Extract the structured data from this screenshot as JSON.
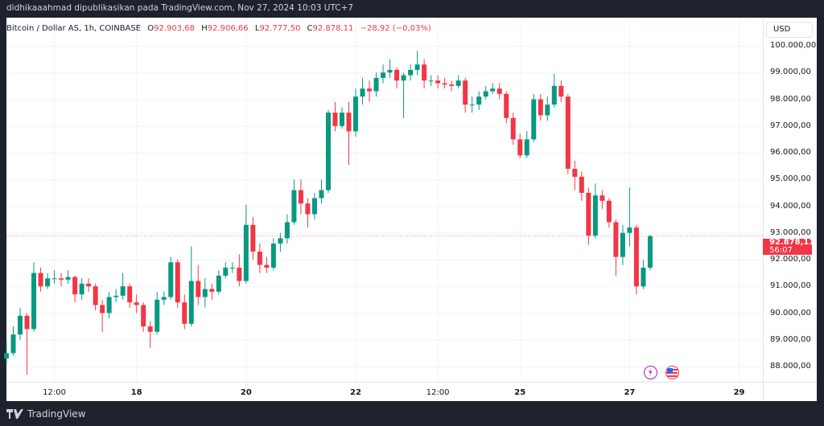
{
  "publisher_line": "didhikaaahmad dipublikasikan pada TradingView.com, Nov 27, 2024 10:03 UTC+7",
  "legend": {
    "symbol": "Bitcoin / Dollar AS, 1h, COINBASE",
    "open_label": "O",
    "open": "92.903,68",
    "high_label": "H",
    "high": "92.906,66",
    "low_label": "L",
    "low": "92.777,50",
    "close_label": "C",
    "close": "92.878,11",
    "change": "−28,92 (−0,03%)"
  },
  "currency_button": "USD",
  "last_price_label": {
    "price": "92.878,11",
    "countdown": "56:07"
  },
  "colors": {
    "up": "#089981",
    "down": "#f23645",
    "frame": "#1e222d",
    "event_icon": "#9c27b0"
  },
  "icons": [
    "lightning-event-icon",
    "us-flag-event-icon"
  ],
  "footer_logo": "TradingView",
  "chart_data": {
    "type": "candlestick",
    "ylim": [
      87500,
      100300
    ],
    "grid": true,
    "last_price": 92878.11,
    "y_ticks": [
      {
        "value": 100000,
        "label": "100.000,00"
      },
      {
        "value": 99000,
        "label": "99.000,00"
      },
      {
        "value": 98000,
        "label": "98.000,00"
      },
      {
        "value": 97000,
        "label": "97.000,00"
      },
      {
        "value": 96000,
        "label": "96.000,00"
      },
      {
        "value": 95000,
        "label": "95.000,00"
      },
      {
        "value": 94000,
        "label": "94.000,00"
      },
      {
        "value": 93000,
        "label": "93.000,00"
      },
      {
        "value": 92000,
        "label": "92.000,00"
      },
      {
        "value": 91000,
        "label": "91.000,00"
      },
      {
        "value": 90000,
        "label": "90.000,00"
      },
      {
        "value": 89000,
        "label": "89.000,00"
      },
      {
        "value": 88000,
        "label": "88.000,00"
      }
    ],
    "x_ticks": [
      {
        "time": "Nov 16 12:00",
        "label": "12:00"
      },
      {
        "time": "Nov 18 00:00",
        "label": "18"
      },
      {
        "time": "Nov 20 00:00",
        "label": "20"
      },
      {
        "time": "Nov 22 00:00",
        "label": "22"
      },
      {
        "time": "Nov 23 12:00",
        "label": "12:00"
      },
      {
        "time": "Nov 25 00:00",
        "label": "25"
      },
      {
        "time": "Nov 27 00:00",
        "label": "27"
      },
      {
        "time": "Nov 29 00:00",
        "label": "29"
      }
    ],
    "candle_fields": [
      "time",
      "open",
      "high",
      "low",
      "close"
    ],
    "candles": [
      [
        "Nov 15 15:00",
        88300,
        88900,
        88100,
        88500
      ],
      [
        "Nov 15 18:00",
        88500,
        89500,
        88400,
        89200
      ],
      [
        "Nov 15 21:00",
        89200,
        90200,
        89000,
        89900
      ],
      [
        "Nov 16 00:00",
        89900,
        90000,
        87700,
        89400
      ],
      [
        "Nov 16 03:00",
        89400,
        91900,
        89300,
        91500
      ],
      [
        "Nov 16 06:00",
        91500,
        91700,
        90800,
        91000
      ],
      [
        "Nov 16 09:00",
        91000,
        91500,
        90900,
        91300
      ],
      [
        "Nov 16 12:00",
        91300,
        91600,
        91100,
        91300
      ],
      [
        "Nov 16 15:00",
        91300,
        91500,
        91000,
        91250
      ],
      [
        "Nov 16 18:00",
        91250,
        91600,
        91100,
        91350
      ],
      [
        "Nov 16 21:00",
        91350,
        91400,
        90400,
        90700
      ],
      [
        "Nov 17 00:00",
        90700,
        91300,
        90500,
        91100
      ],
      [
        "Nov 17 03:00",
        91100,
        91300,
        90800,
        91000
      ],
      [
        "Nov 17 06:00",
        91000,
        91100,
        90100,
        90300
      ],
      [
        "Nov 17 09:00",
        90300,
        90500,
        89300,
        90000
      ],
      [
        "Nov 17 12:00",
        90000,
        90800,
        89800,
        90600
      ],
      [
        "Nov 17 15:00",
        90600,
        90900,
        90400,
        90650
      ],
      [
        "Nov 17 18:00",
        90650,
        91500,
        90500,
        91000
      ],
      [
        "Nov 17 21:00",
        91000,
        91100,
        90200,
        90400
      ],
      [
        "Nov 18 00:00",
        90400,
        90700,
        90000,
        90300
      ],
      [
        "Nov 18 03:00",
        90300,
        90400,
        89300,
        89500
      ],
      [
        "Nov 18 06:00",
        89500,
        89700,
        88700,
        89300
      ],
      [
        "Nov 18 09:00",
        89300,
        90800,
        89200,
        90500
      ],
      [
        "Nov 18 12:00",
        90500,
        90800,
        90300,
        90600
      ],
      [
        "Nov 18 15:00",
        90600,
        92100,
        90500,
        91900
      ],
      [
        "Nov 18 18:00",
        91900,
        92000,
        90200,
        90400
      ],
      [
        "Nov 18 21:00",
        90400,
        90700,
        89400,
        89600
      ],
      [
        "Nov 19 00:00",
        89600,
        92500,
        89500,
        91200
      ],
      [
        "Nov 19 03:00",
        91200,
        91800,
        90300,
        90600
      ],
      [
        "Nov 19 06:00",
        90600,
        91300,
        90200,
        90900
      ],
      [
        "Nov 19 09:00",
        90900,
        91100,
        90500,
        90800
      ],
      [
        "Nov 19 12:00",
        90800,
        91600,
        90700,
        91400
      ],
      [
        "Nov 19 15:00",
        91400,
        91900,
        91300,
        91700
      ],
      [
        "Nov 19 18:00",
        91700,
        91900,
        91500,
        91700
      ],
      [
        "Nov 19 21:00",
        91700,
        92200,
        91000,
        91200
      ],
      [
        "Nov 20 00:00",
        91200,
        94050,
        91100,
        93300
      ],
      [
        "Nov 20 03:00",
        93300,
        93600,
        92000,
        92300
      ],
      [
        "Nov 20 06:00",
        92300,
        92600,
        91500,
        91800
      ],
      [
        "Nov 20 09:00",
        91800,
        92100,
        91500,
        91700
      ],
      [
        "Nov 20 12:00",
        91700,
        92800,
        91600,
        92600
      ],
      [
        "Nov 20 15:00",
        92600,
        93000,
        92300,
        92800
      ],
      [
        "Nov 20 18:00",
        92800,
        93700,
        92600,
        93400
      ],
      [
        "Nov 20 21:00",
        93400,
        95000,
        93300,
        94600
      ],
      [
        "Nov 21 00:00",
        94600,
        95000,
        93700,
        94100
      ],
      [
        "Nov 21 03:00",
        94100,
        94300,
        93200,
        93700
      ],
      [
        "Nov 21 06:00",
        93700,
        94500,
        93500,
        94300
      ],
      [
        "Nov 21 09:00",
        94300,
        95000,
        94100,
        94600
      ],
      [
        "Nov 21 12:00",
        94600,
        97600,
        94500,
        97500
      ],
      [
        "Nov 21 15:00",
        97500,
        97900,
        96800,
        97000
      ],
      [
        "Nov 21 18:00",
        97000,
        97700,
        96900,
        97500
      ],
      [
        "Nov 21 21:00",
        97500,
        97900,
        95550,
        96800
      ],
      [
        "Nov 22 00:00",
        96800,
        98400,
        96600,
        98100
      ],
      [
        "Nov 22 03:00",
        98100,
        98800,
        97800,
        98400
      ],
      [
        "Nov 22 06:00",
        98400,
        98700,
        97900,
        98300
      ],
      [
        "Nov 22 09:00",
        98300,
        99000,
        98100,
        98800
      ],
      [
        "Nov 22 12:00",
        98800,
        99300,
        98600,
        99000
      ],
      [
        "Nov 22 15:00",
        99000,
        99500,
        98800,
        99100
      ],
      [
        "Nov 22 18:00",
        99100,
        99200,
        98400,
        98700
      ],
      [
        "Nov 22 21:00",
        98700,
        99000,
        97300,
        98900
      ],
      [
        "Nov 23 00:00",
        98900,
        99300,
        98700,
        99100
      ],
      [
        "Nov 23 03:00",
        99100,
        99800,
        98900,
        99300
      ],
      [
        "Nov 23 06:00",
        99300,
        99500,
        98400,
        98700
      ],
      [
        "Nov 23 09:00",
        98700,
        98900,
        98500,
        98700
      ],
      [
        "Nov 23 12:00",
        98700,
        98900,
        98400,
        98600
      ],
      [
        "Nov 23 15:00",
        98600,
        98800,
        98400,
        98550
      ],
      [
        "Nov 23 18:00",
        98550,
        98700,
        98300,
        98500
      ],
      [
        "Nov 23 21:00",
        98500,
        98900,
        98400,
        98700
      ],
      [
        "Nov 24 00:00",
        98700,
        98800,
        97500,
        97800
      ],
      [
        "Nov 24 03:00",
        97800,
        98100,
        97500,
        97800
      ],
      [
        "Nov 24 06:00",
        97800,
        98300,
        97600,
        98100
      ],
      [
        "Nov 24 09:00",
        98100,
        98500,
        98000,
        98300
      ],
      [
        "Nov 24 12:00",
        98300,
        98600,
        98200,
        98400
      ],
      [
        "Nov 24 15:00",
        98400,
        98600,
        98000,
        98200
      ],
      [
        "Nov 24 18:00",
        98200,
        98300,
        97100,
        97300
      ],
      [
        "Nov 24 21:00",
        97300,
        97500,
        96300,
        96500
      ],
      [
        "Nov 25 00:00",
        96500,
        96700,
        95800,
        95900
      ],
      [
        "Nov 25 03:00",
        95900,
        96800,
        95800,
        96500
      ],
      [
        "Nov 25 06:00",
        96500,
        98200,
        96400,
        98000
      ],
      [
        "Nov 25 09:00",
        98000,
        98200,
        97200,
        97400
      ],
      [
        "Nov 25 12:00",
        97400,
        98100,
        97200,
        97800
      ],
      [
        "Nov 25 15:00",
        97800,
        98950,
        97700,
        98500
      ],
      [
        "Nov 25 18:00",
        98500,
        98700,
        97900,
        98100
      ],
      [
        "Nov 25 21:00",
        98100,
        98200,
        95200,
        95400
      ],
      [
        "Nov 26 00:00",
        95400,
        95700,
        94600,
        95100
      ],
      [
        "Nov 26 03:00",
        95100,
        95300,
        94200,
        94500
      ],
      [
        "Nov 26 06:00",
        94500,
        94700,
        92550,
        92900
      ],
      [
        "Nov 26 09:00",
        92900,
        94850,
        92800,
        94400
      ],
      [
        "Nov 26 12:00",
        94400,
        94600,
        93900,
        94200
      ],
      [
        "Nov 26 15:00",
        94200,
        94300,
        93200,
        93400
      ],
      [
        "Nov 26 18:00",
        93400,
        93500,
        91400,
        92100
      ],
      [
        "Nov 26 21:00",
        92100,
        93300,
        91800,
        93000
      ],
      [
        "Nov 27 00:00",
        93000,
        94700,
        92500,
        93200
      ],
      [
        "Nov 27 03:00",
        93200,
        93300,
        90700,
        91000
      ],
      [
        "Nov 27 06:00",
        91000,
        92000,
        90900,
        91700
      ],
      [
        "Nov 27 09:00",
        91700,
        92930,
        91600,
        92878.11
      ]
    ]
  }
}
